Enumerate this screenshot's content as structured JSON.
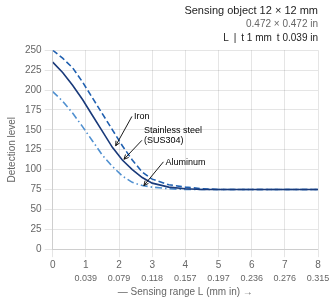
{
  "chart_data": {
    "type": "line",
    "title": "Sensing object 12 × 12 mm",
    "subtitle": "0.472 × 0.472 in",
    "x_label": "— Sensing range L (mm in) →",
    "y_label": "Detection level",
    "x": [
      0.0,
      0.3,
      0.6,
      0.9,
      1.2,
      1.5,
      1.8,
      2.1,
      2.4,
      2.7,
      3.0,
      3.5,
      4.0,
      4.5,
      5.0,
      5.5,
      6.0,
      6.5,
      7.0,
      7.5,
      8.0
    ],
    "series": [
      {
        "name": "Iron",
        "color": "#1a3a7a",
        "line_style": "solid",
        "values": [
          235,
          222,
          206,
          188,
          168,
          148,
          128,
          112,
          100,
          90,
          83,
          78,
          76,
          75,
          75,
          75,
          75,
          75,
          75,
          75,
          75
        ]
      },
      {
        "name": "Stainless steel\n(SUS304)",
        "color": "#2060b0",
        "line_style": "dashed",
        "values": [
          250,
          240,
          228,
          210,
          190,
          170,
          150,
          130,
          112,
          97,
          88,
          81,
          78,
          76,
          75,
          75,
          75,
          75,
          75,
          75,
          75
        ]
      },
      {
        "name": "Aluminum",
        "color": "#5090d0",
        "line_style": "dashdot",
        "values": [
          198,
          186,
          171,
          154,
          136,
          118,
          104,
          92,
          84,
          80,
          78,
          76,
          75,
          75,
          75,
          75,
          75,
          75,
          75,
          75,
          75
        ]
      }
    ],
    "xlim": [
      0,
      8
    ],
    "xticks": [
      0,
      1,
      2,
      3,
      4,
      5,
      6,
      7,
      8
    ],
    "x2lim": [
      0,
      8
    ],
    "x2ticks": [
      {
        "value": 1,
        "label": "0.039"
      },
      {
        "value": 2,
        "label": "0.079"
      },
      {
        "value": 3,
        "label": "0.118"
      },
      {
        "value": 4,
        "label": "0.157"
      },
      {
        "value": 5,
        "label": "0.197"
      },
      {
        "value": 6,
        "label": "0.236"
      },
      {
        "value": 7,
        "label": "0.276"
      },
      {
        "value": 8,
        "label": "0.315"
      }
    ],
    "ylim": [
      0,
      250
    ],
    "yticks": [
      0,
      25,
      50,
      75,
      100,
      125,
      150,
      175,
      200,
      225,
      250
    ],
    "grid": true,
    "annotations": [
      {
        "text": "L"
      },
      {
        "text": "|"
      },
      {
        "text": "t 1 mm"
      },
      {
        "text": "t 0.039 in"
      },
      {
        "text": "Iron",
        "x": 1.9,
        "y": 130,
        "text_x": 2.45,
        "text_y": 163
      },
      {
        "text": "Stainless steel\n(SUS304)",
        "x": 2.15,
        "y": 113,
        "text_x": 2.75,
        "text_y": 133
      },
      {
        "text": "Aluminum",
        "x": 2.75,
        "y": 80,
        "text_x": 3.4,
        "text_y": 106
      }
    ]
  }
}
